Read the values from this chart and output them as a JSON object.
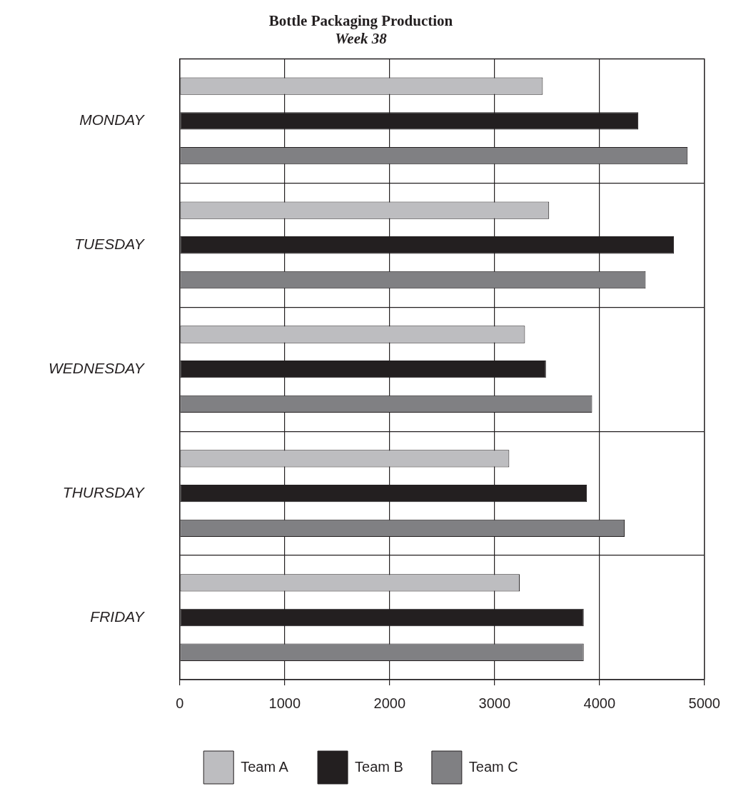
{
  "chart_data": {
    "type": "bar",
    "orientation": "horizontal",
    "title": "Bottle Packaging Production",
    "subtitle": "Week 38",
    "categories": [
      "MONDAY",
      "TUESDAY",
      "WEDNESDAY",
      "THURSDAY",
      "FRIDAY"
    ],
    "series": [
      {
        "name": "Team A",
        "color": "#bdbdc0",
        "values": [
          3460,
          3520,
          3290,
          3140,
          3240
        ]
      },
      {
        "name": "Team B",
        "color": "#231f20",
        "values": [
          4370,
          4710,
          3490,
          3880,
          3850
        ]
      },
      {
        "name": "Team C",
        "color": "#808083",
        "values": [
          4840,
          4440,
          3930,
          4240,
          3850
        ]
      }
    ],
    "xlim": [
      0,
      5000
    ],
    "xticks": [
      0,
      1000,
      2000,
      3000,
      4000,
      5000
    ],
    "grid": true,
    "legend": "bottom"
  }
}
